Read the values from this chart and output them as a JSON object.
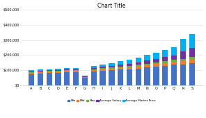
{
  "title": "Chart Title",
  "categories": [
    "A",
    "B",
    "C",
    "D",
    "E",
    "F",
    "G",
    "H",
    "I",
    "J",
    "K",
    "L",
    "M",
    "N",
    "O",
    "P",
    "Q",
    "R",
    "S"
  ],
  "series": {
    "Min": [
      75000,
      80000,
      82000,
      85000,
      87000,
      88000,
      50000,
      92000,
      96000,
      100000,
      104000,
      108000,
      112000,
      118000,
      124000,
      130000,
      136000,
      140000,
      148000
    ],
    "Mid": [
      8000,
      8000,
      8000,
      8000,
      8000,
      8000,
      5000,
      10000,
      11000,
      12000,
      13000,
      14000,
      15000,
      16000,
      17000,
      18000,
      20000,
      22000,
      25000
    ],
    "Max": [
      5000,
      5000,
      5000,
      5000,
      5000,
      5000,
      3000,
      6000,
      7000,
      7000,
      8000,
      8000,
      9000,
      10000,
      11000,
      12000,
      13000,
      14000,
      16000
    ],
    "Average Salary": [
      5000,
      5000,
      5000,
      5000,
      5000,
      5000,
      2000,
      8000,
      9000,
      10000,
      13000,
      15000,
      18000,
      20000,
      25000,
      28000,
      30000,
      50000,
      60000
    ],
    "Average Market Price": [
      8000,
      8000,
      8000,
      8000,
      8000,
      8000,
      3000,
      12000,
      15000,
      18000,
      22000,
      25000,
      30000,
      36000,
      40000,
      45000,
      52000,
      80000,
      90000
    ]
  },
  "colors": {
    "Min": "#4472C4",
    "Mid": "#ED7D31",
    "Max": "#70AD47",
    "Average Salary": "#7030A0",
    "Average Market Price": "#00B0F0"
  },
  "ylim": [
    0,
    500000
  ],
  "yticks": [
    0,
    100000,
    200000,
    300000,
    400000,
    500000
  ],
  "ytick_labels": [
    "$0",
    "$100,000",
    "$200,000",
    "$300,000",
    "$400,000",
    "$500,000"
  ],
  "background_color": "#ffffff",
  "grid_color": "#e0e0e0",
  "title_fontsize": 5.5,
  "tick_fontsize": 3.5,
  "legend_fontsize": 3.0,
  "bar_width": 0.65
}
